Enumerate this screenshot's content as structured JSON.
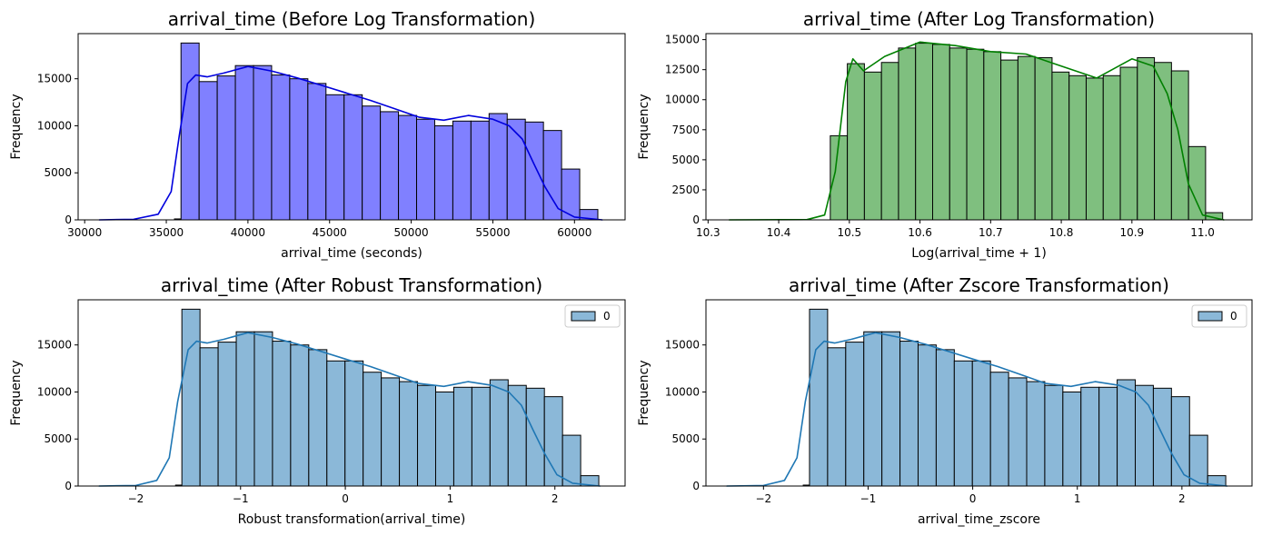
{
  "figure": {
    "layout": "2x2 grid"
  },
  "chart_data": [
    {
      "type": "histogram",
      "title": "arrival_time (Before Log Transformation)",
      "xlabel": "arrival_time  (seconds)",
      "ylabel": "Frequency",
      "bar_color": "#8080ff",
      "kde_color": "#0000dd",
      "edge_color": "#000000",
      "xlim": [
        29600,
        63100
      ],
      "ylim": [
        0,
        19800
      ],
      "xticks": [
        30000,
        35000,
        40000,
        45000,
        50000,
        55000,
        60000
      ],
      "xtick_labels": [
        "30000",
        "35000",
        "40000",
        "45000",
        "50000",
        "55000",
        "60000"
      ],
      "yticks": [
        0,
        5000,
        10000,
        15000
      ],
      "ytick_labels": [
        "0",
        "5000",
        "10000",
        "15000"
      ],
      "bin_start": 35900,
      "bin_width": 1110,
      "values": [
        18800,
        14700,
        15300,
        16400,
        16400,
        15400,
        15000,
        14500,
        13300,
        13300,
        12100,
        11500,
        11100,
        10700,
        10000,
        10500,
        10500,
        11300,
        10700,
        10400,
        9500,
        5400,
        1100
      ],
      "pre_bars": [
        {
          "x0": 35500,
          "x1": 35900,
          "value": 100
        }
      ],
      "kde": {
        "x": [
          30900,
          33000,
          34500,
          35300,
          35800,
          36300,
          36800,
          37500,
          38500,
          40000,
          41500,
          43000,
          44500,
          46000,
          47500,
          49000,
          50500,
          52000,
          53500,
          55000,
          56000,
          56800,
          57500,
          58200,
          59000,
          60000,
          61700
        ],
        "y": [
          0,
          60,
          600,
          3000,
          9000,
          14500,
          15400,
          15200,
          15600,
          16300,
          15800,
          15100,
          14300,
          13500,
          12700,
          11800,
          10900,
          10600,
          11100,
          10700,
          10000,
          8600,
          6000,
          3500,
          1200,
          300,
          0
        ]
      },
      "legend": null
    },
    {
      "type": "histogram",
      "title": "arrival_time  (After Log Transformation)",
      "xlabel": "Log(arrival_time + 1)",
      "ylabel": "Frequency",
      "bar_color": "#7fbf7f",
      "kde_color": "#008000",
      "edge_color": "#000000",
      "xlim": [
        10.297,
        11.07
      ],
      "ylim": [
        0,
        15500
      ],
      "xticks": [
        10.3,
        10.4,
        10.5,
        10.6,
        10.7,
        10.8,
        10.9,
        11.0
      ],
      "xtick_labels": [
        "10.3",
        "10.4",
        "10.5",
        "10.6",
        "10.7",
        "10.8",
        "10.9",
        "11.0"
      ],
      "yticks": [
        0,
        2500,
        5000,
        7500,
        10000,
        12500,
        15000
      ],
      "ytick_labels": [
        "0",
        "2500",
        "5000",
        "7500",
        "10000",
        "12500",
        "15000"
      ],
      "bin_start": 10.473,
      "bin_width": 0.02415,
      "values": [
        7000,
        13000,
        12300,
        13100,
        14300,
        14700,
        14600,
        14300,
        14200,
        14000,
        13300,
        13600,
        13500,
        12300,
        12000,
        11800,
        12000,
        12700,
        13500,
        13100,
        12400,
        6100,
        600
      ],
      "pre_bars": [],
      "kde": {
        "x": [
          10.33,
          10.44,
          10.465,
          10.48,
          10.495,
          10.505,
          10.52,
          10.55,
          10.6,
          10.65,
          10.7,
          10.75,
          10.8,
          10.85,
          10.9,
          10.93,
          10.95,
          10.965,
          10.98,
          11.0,
          11.03
        ],
        "y": [
          0,
          20,
          400,
          4000,
          11500,
          13400,
          12400,
          13600,
          14800,
          14500,
          14000,
          13800,
          12800,
          11800,
          13400,
          12800,
          10500,
          7500,
          3000,
          400,
          0
        ]
      },
      "legend": null
    },
    {
      "type": "histogram",
      "title": "arrival_time  (After Robust Transformation)",
      "xlabel": "Robust transformation(arrival_time)",
      "ylabel": "Frequency",
      "bar_color": "#8bb8d8",
      "kde_color": "#1f77b4",
      "edge_color": "#000000",
      "xlim": [
        -2.55,
        2.67
      ],
      "ylim": [
        0,
        19800
      ],
      "xticks": [
        -2,
        -1,
        0,
        1,
        2
      ],
      "xtick_labels": [
        "−2",
        "−1",
        "0",
        "1",
        "2"
      ],
      "yticks": [
        0,
        5000,
        10000,
        15000
      ],
      "ytick_labels": [
        "0",
        "5000",
        "10000",
        "15000"
      ],
      "bin_start": -1.56,
      "bin_width": 0.173,
      "values": [
        18800,
        14700,
        15300,
        16400,
        16400,
        15400,
        15000,
        14500,
        13300,
        13300,
        12100,
        11500,
        11100,
        10700,
        10000,
        10500,
        10500,
        11300,
        10700,
        10400,
        9500,
        5400,
        1100
      ],
      "pre_bars": [
        {
          "x0": -1.62,
          "x1": -1.56,
          "value": 100
        }
      ],
      "kde": {
        "x": [
          -2.35,
          -2.0,
          -1.8,
          -1.68,
          -1.6,
          -1.5,
          -1.42,
          -1.32,
          -1.16,
          -0.93,
          -0.7,
          -0.46,
          -0.23,
          0.0,
          0.24,
          0.47,
          0.7,
          0.94,
          1.17,
          1.4,
          1.56,
          1.68,
          1.79,
          1.9,
          2.02,
          2.17,
          2.43
        ],
        "y": [
          0,
          60,
          600,
          3000,
          9000,
          14500,
          15400,
          15200,
          15600,
          16300,
          15800,
          15100,
          14300,
          13500,
          12700,
          11800,
          10900,
          10600,
          11100,
          10700,
          10000,
          8600,
          6000,
          3500,
          1200,
          300,
          0
        ]
      },
      "legend": {
        "label": "0",
        "position": "upper right"
      }
    },
    {
      "type": "histogram",
      "title": "arrival_time  (After Zscore Transformation)",
      "xlabel": "arrival_time_zscore",
      "ylabel": "Frequency",
      "bar_color": "#8bb8d8",
      "kde_color": "#1f77b4",
      "edge_color": "#000000",
      "xlim": [
        -2.55,
        2.67
      ],
      "ylim": [
        0,
        19800
      ],
      "xticks": [
        -2,
        -1,
        0,
        1,
        2
      ],
      "xtick_labels": [
        "−2",
        "−1",
        "0",
        "1",
        "2"
      ],
      "yticks": [
        0,
        5000,
        10000,
        15000
      ],
      "ytick_labels": [
        "0",
        "5000",
        "10000",
        "15000"
      ],
      "bin_start": -1.56,
      "bin_width": 0.173,
      "values": [
        18800,
        14700,
        15300,
        16400,
        16400,
        15400,
        15000,
        14500,
        13300,
        13300,
        12100,
        11500,
        11100,
        10700,
        10000,
        10500,
        10500,
        11300,
        10700,
        10400,
        9500,
        5400,
        1100
      ],
      "pre_bars": [
        {
          "x0": -1.62,
          "x1": -1.56,
          "value": 100
        }
      ],
      "kde": {
        "x": [
          -2.35,
          -2.0,
          -1.8,
          -1.68,
          -1.6,
          -1.5,
          -1.42,
          -1.32,
          -1.16,
          -0.93,
          -0.7,
          -0.46,
          -0.23,
          0.0,
          0.24,
          0.47,
          0.7,
          0.94,
          1.17,
          1.4,
          1.56,
          1.68,
          1.79,
          1.9,
          2.02,
          2.17,
          2.43
        ],
        "y": [
          0,
          60,
          600,
          3000,
          9000,
          14500,
          15400,
          15200,
          15600,
          16300,
          15800,
          15100,
          14300,
          13500,
          12700,
          11800,
          10900,
          10600,
          11100,
          10700,
          10000,
          8600,
          6000,
          3500,
          1200,
          300,
          0
        ]
      },
      "legend": {
        "label": "0",
        "position": "upper right"
      }
    }
  ]
}
